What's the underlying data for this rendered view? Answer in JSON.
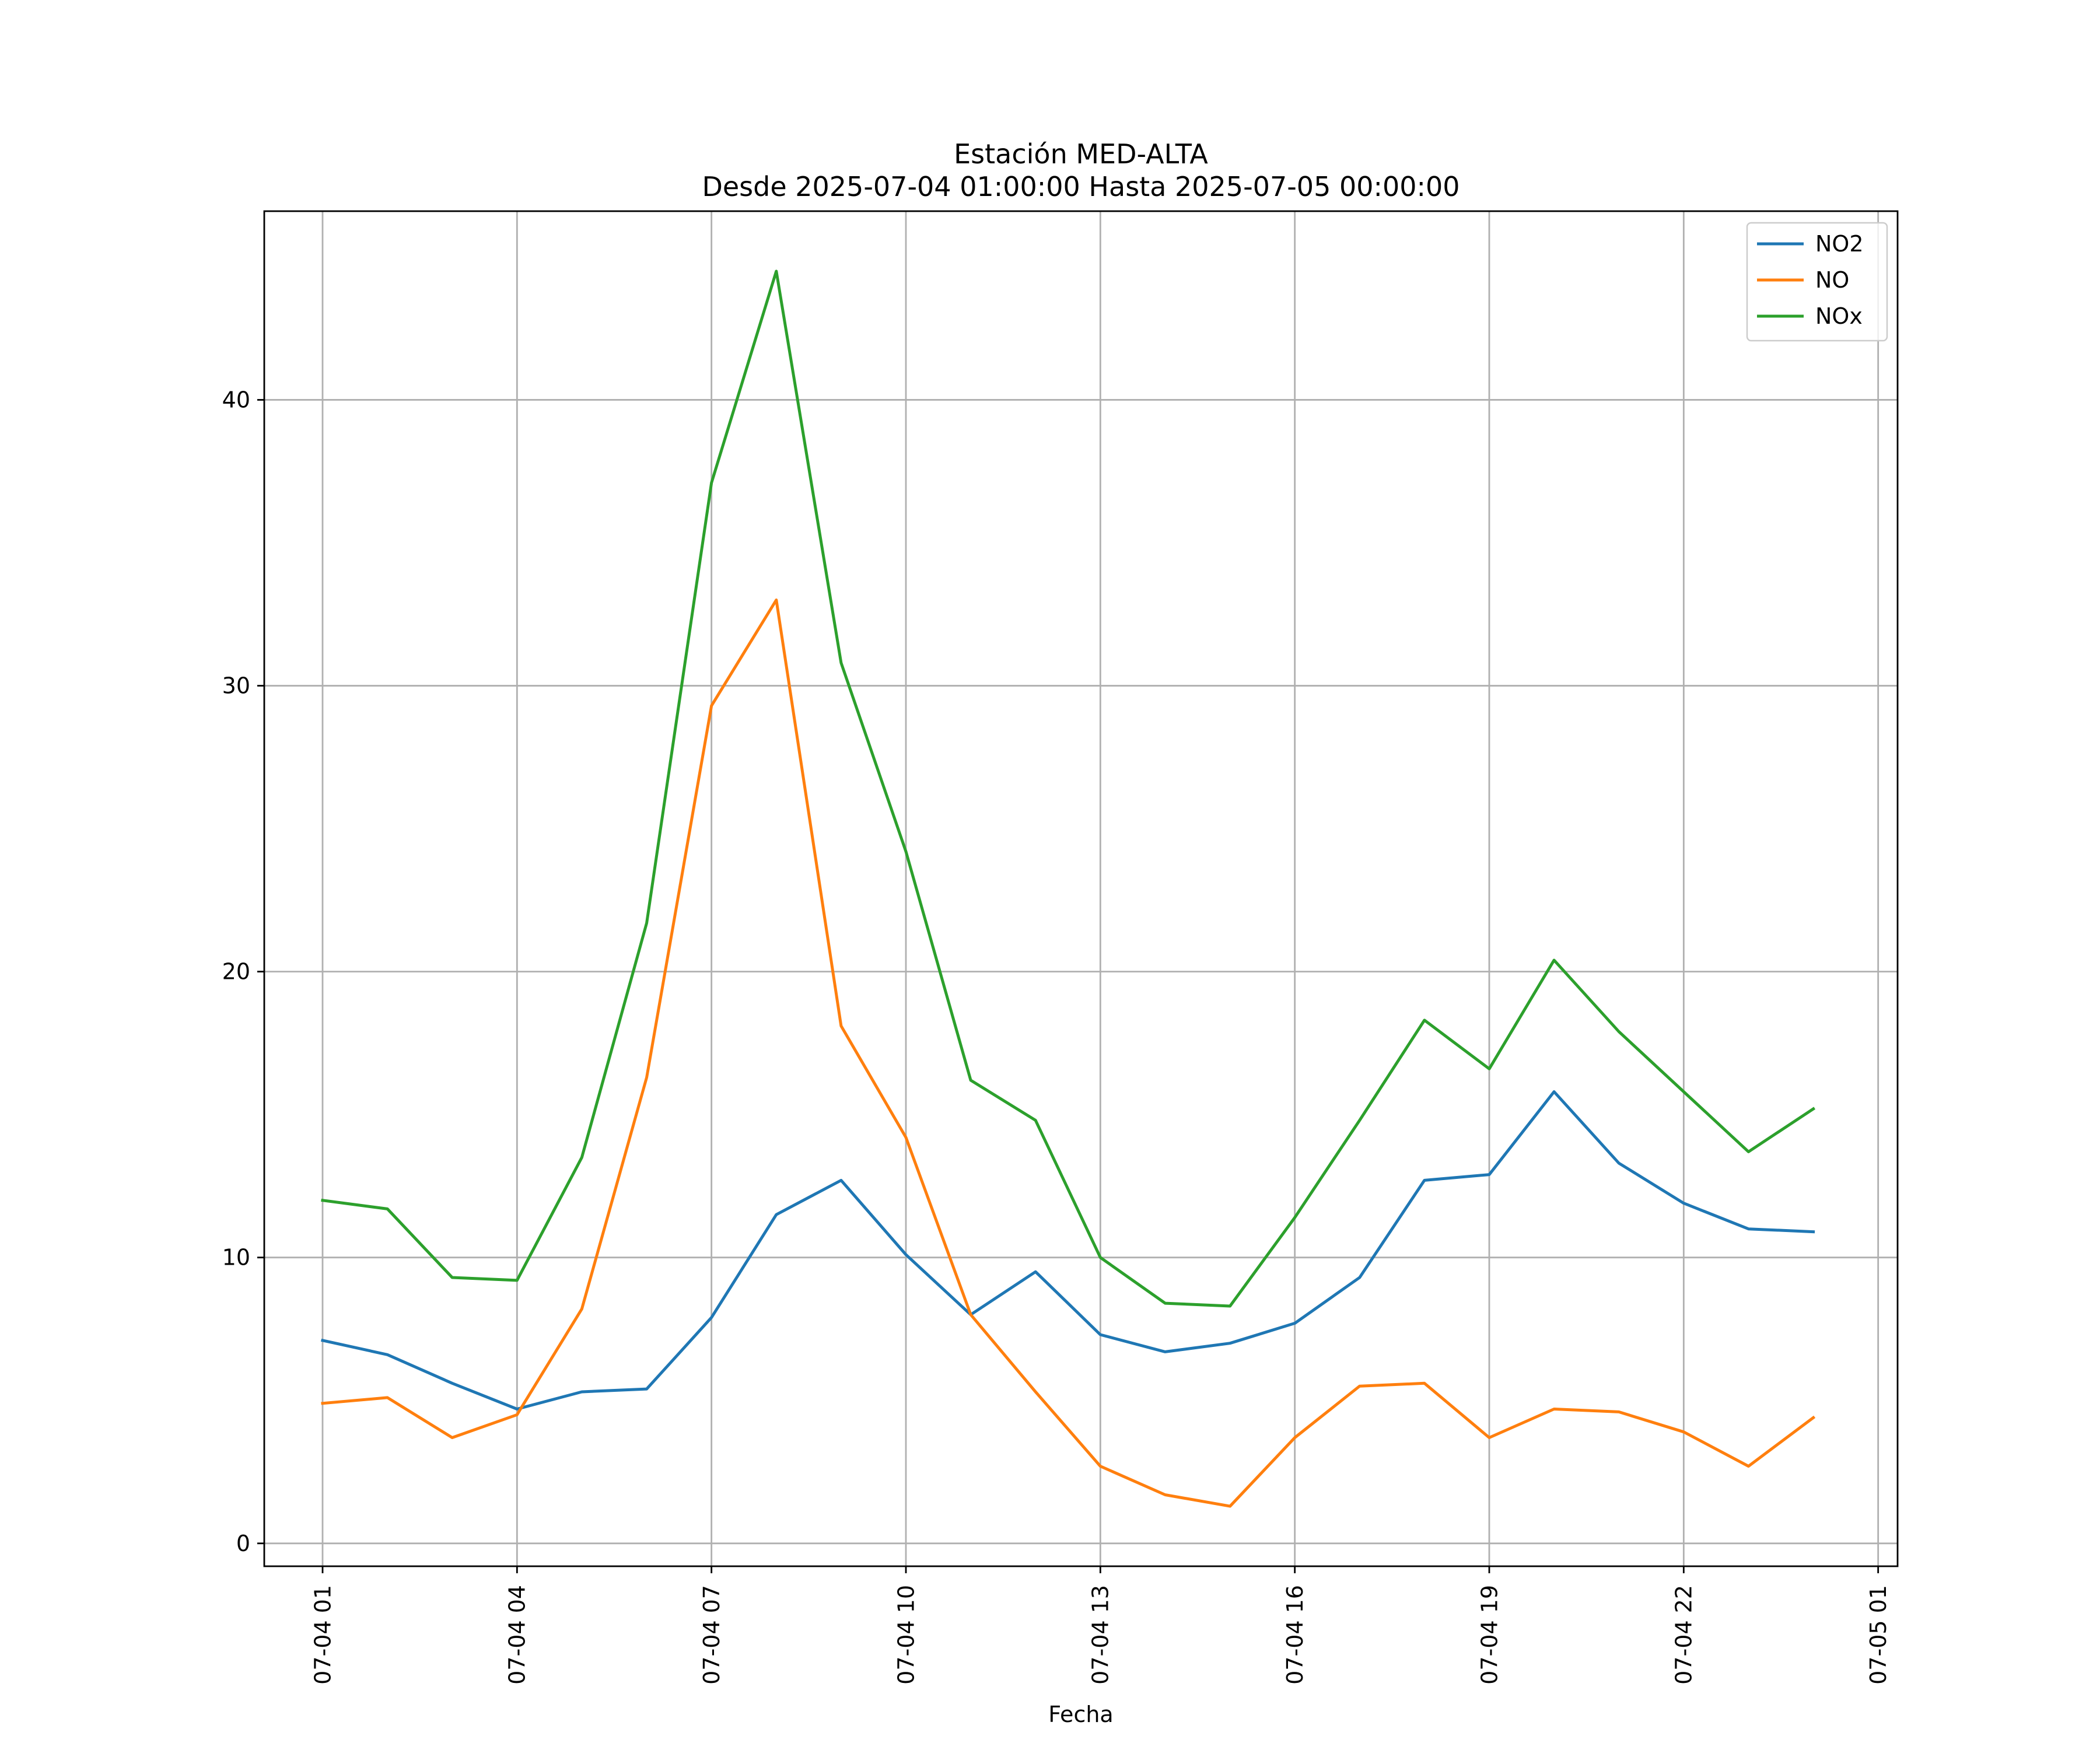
{
  "chart_data": {
    "type": "line",
    "title": "Estación MED-ALTA",
    "subtitle": "Desde 2025-07-04 01:00:00 Hasta 2025-07-05 00:00:00",
    "xlabel": "Fecha",
    "ylabel": "",
    "x": [
      "07-04 01",
      "07-04 02",
      "07-04 03",
      "07-04 04",
      "07-04 05",
      "07-04 06",
      "07-04 07",
      "07-04 08",
      "07-04 09",
      "07-04 10",
      "07-04 11",
      "07-04 12",
      "07-04 13",
      "07-04 14",
      "07-04 15",
      "07-04 16",
      "07-04 17",
      "07-04 18",
      "07-04 19",
      "07-04 20",
      "07-04 21",
      "07-04 22",
      "07-04 23",
      "07-05 00"
    ],
    "xlim_hours": [
      -0.9,
      24.3
    ],
    "xticks": [
      {
        "hour": 0,
        "label": "07-04 01"
      },
      {
        "hour": 3,
        "label": "07-04 04"
      },
      {
        "hour": 6,
        "label": "07-04 07"
      },
      {
        "hour": 9,
        "label": "07-04 10"
      },
      {
        "hour": 12,
        "label": "07-04 13"
      },
      {
        "hour": 15,
        "label": "07-04 16"
      },
      {
        "hour": 18,
        "label": "07-04 19"
      },
      {
        "hour": 21,
        "label": "07-04 22"
      },
      {
        "hour": 24,
        "label": "07-05 01"
      }
    ],
    "ylim": [
      -0.8,
      46.6
    ],
    "yticks": [
      0,
      10,
      20,
      30,
      40
    ],
    "grid": true,
    "legend_position": "top-right",
    "series": [
      {
        "name": "NO2",
        "color": "#1f77b4",
        "values": [
          7.1,
          6.6,
          5.6,
          4.7,
          5.3,
          5.4,
          7.9,
          11.5,
          12.7,
          10.1,
          8.0,
          9.5,
          7.3,
          6.7,
          7.0,
          7.7,
          9.3,
          12.7,
          12.9,
          15.8,
          13.3,
          11.9,
          11.0,
          10.9
        ]
      },
      {
        "name": "NO",
        "color": "#ff7f0e",
        "values": [
          4.9,
          5.1,
          3.7,
          4.5,
          8.2,
          16.3,
          29.3,
          33.0,
          18.1,
          14.2,
          8.0,
          5.3,
          2.7,
          1.7,
          1.3,
          3.7,
          5.5,
          5.6,
          3.7,
          4.7,
          4.6,
          3.9,
          2.7,
          4.4
        ]
      },
      {
        "name": "NOx",
        "color": "#2ca02c",
        "values": [
          12.0,
          11.7,
          9.3,
          9.2,
          13.5,
          21.7,
          37.1,
          44.5,
          30.8,
          24.2,
          16.2,
          14.8,
          10.0,
          8.4,
          8.3,
          11.4,
          14.8,
          18.3,
          16.6,
          20.4,
          17.9,
          15.8,
          13.7,
          15.2
        ]
      }
    ]
  }
}
